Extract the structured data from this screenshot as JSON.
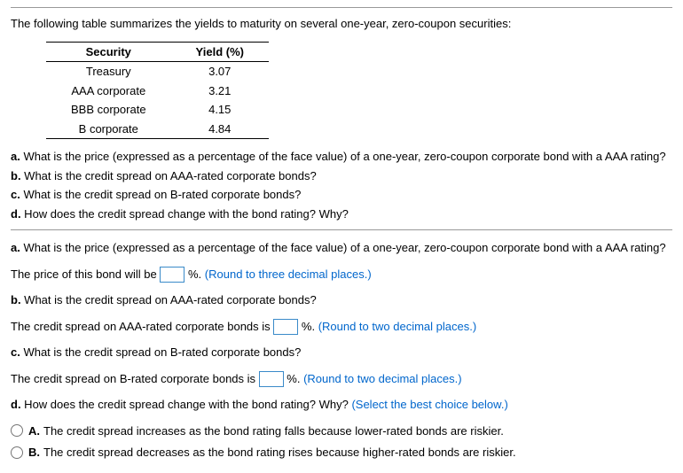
{
  "intro": "The following table summarizes the yields to maturity on several one-year, zero-coupon securities:",
  "table": {
    "headers": {
      "security": "Security",
      "yield": "Yield (%)"
    },
    "rows": [
      {
        "security": "Treasury",
        "yield": "3.07"
      },
      {
        "security": "AAA corporate",
        "yield": "3.21"
      },
      {
        "security": "BBB corporate",
        "yield": "4.15"
      },
      {
        "security": "B corporate",
        "yield": "4.84"
      }
    ]
  },
  "questions": {
    "a_label": "a.",
    "a_text": " What is the price (expressed as a percentage of the face value) of a one-year, zero-coupon corporate bond with a AAA rating?",
    "b_label": "b.",
    "b_text": " What is the credit spread on AAA-rated corporate bonds?",
    "c_label": "c.",
    "c_text": " What is the credit spread on B-rated corporate bonds?",
    "d_label": "d.",
    "d_text": " How does the credit spread change with the bond rating? Why?"
  },
  "answers": {
    "a": {
      "prompt_label": "a.",
      "prompt_text": " What is the price (expressed as a percentage of the face value) of a one-year, zero-coupon corporate bond with a AAA rating?",
      "line_before": "The price of this bond will be ",
      "line_after": " %. ",
      "hint": " (Round to three decimal places.)"
    },
    "b": {
      "prompt_label": "b.",
      "prompt_text": " What is the credit spread on AAA-rated corporate bonds?",
      "line_before": "The credit spread on AAA-rated corporate bonds is ",
      "line_after": " %. ",
      "hint": " (Round to two decimal places.)"
    },
    "c": {
      "prompt_label": "c.",
      "prompt_text": " What is the credit spread on B-rated corporate bonds?",
      "line_before": "The credit spread on B-rated corporate bonds is ",
      "line_after": " %. ",
      "hint": " (Round to two decimal places.)"
    },
    "d": {
      "prompt_label": "d.",
      "prompt_text": " How does the credit spread change with the bond rating? Why? ",
      "hint": " (Select the best choice below.)",
      "options": {
        "A": {
          "letter": "A.",
          "text": "The credit spread increases as the bond rating falls because lower-rated bonds are riskier."
        },
        "B": {
          "letter": "B.",
          "text": "The credit spread decreases as the bond rating rises because higher-rated bonds are riskier."
        }
      }
    }
  }
}
